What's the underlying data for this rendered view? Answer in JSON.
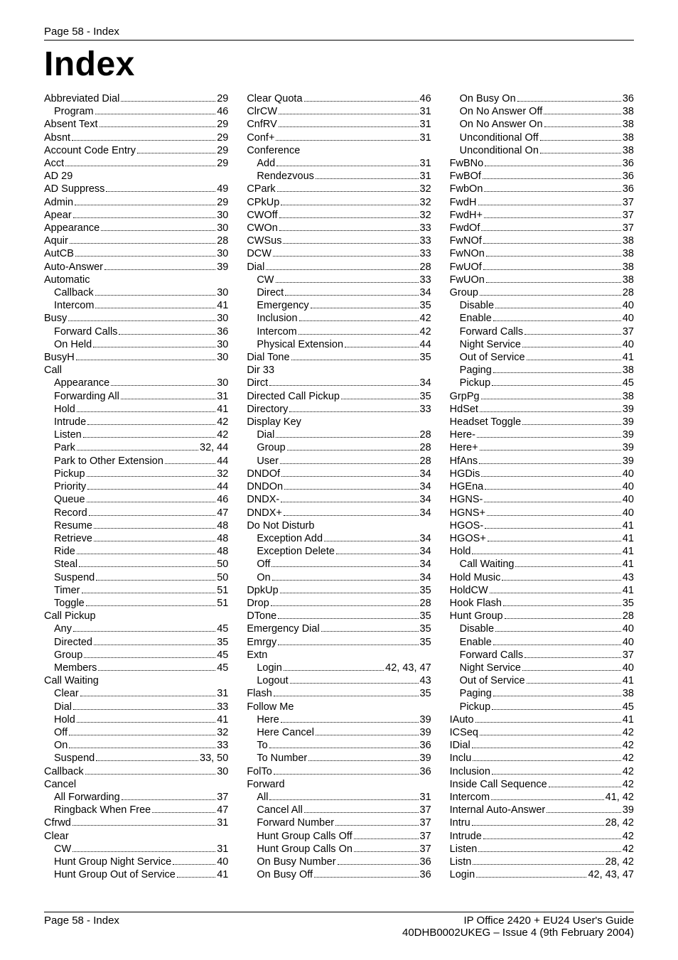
{
  "header": {
    "text": "Page 58 - Index"
  },
  "title": "Index",
  "footer": {
    "left": "Page 58 - Index",
    "right_line1": "IP Office 2420 + EU24 User's Guide",
    "right_line2": "40DHB0002UKEG – Issue 4 (9th February 2004)"
  },
  "entries": [
    {
      "label": "Abbreviated Dial",
      "page": "29",
      "indent": 0
    },
    {
      "label": "Program",
      "page": "46",
      "indent": 1
    },
    {
      "label": "Absent Text",
      "page": "29",
      "indent": 0
    },
    {
      "label": "Absnt",
      "page": "29",
      "indent": 0
    },
    {
      "label": "Account Code Entry",
      "page": "29",
      "indent": 0
    },
    {
      "label": "Acct",
      "page": "29",
      "indent": 0
    },
    {
      "label": "AD 29",
      "page": "",
      "indent": 0,
      "nodots": true
    },
    {
      "label": "AD Suppress",
      "page": "49",
      "indent": 0
    },
    {
      "label": "Admin",
      "page": "29",
      "indent": 0
    },
    {
      "label": "Apear",
      "page": "30",
      "indent": 0
    },
    {
      "label": "Appearance",
      "page": "30",
      "indent": 0
    },
    {
      "label": "Aquir",
      "page": "28",
      "indent": 0
    },
    {
      "label": "AutCB",
      "page": "30",
      "indent": 0
    },
    {
      "label": "Auto-Answer",
      "page": "39",
      "indent": 0
    },
    {
      "label": "Automatic",
      "page": "",
      "indent": 0,
      "nodots": true
    },
    {
      "label": "Callback",
      "page": "30",
      "indent": 1
    },
    {
      "label": "Intercom",
      "page": "41",
      "indent": 1
    },
    {
      "label": "Busy",
      "page": "30",
      "indent": 0
    },
    {
      "label": "Forward Calls",
      "page": "36",
      "indent": 1
    },
    {
      "label": "On Held",
      "page": "30",
      "indent": 1
    },
    {
      "label": "BusyH",
      "page": "30",
      "indent": 0
    },
    {
      "label": "Call",
      "page": "",
      "indent": 0,
      "nodots": true
    },
    {
      "label": "Appearance",
      "page": "30",
      "indent": 1
    },
    {
      "label": "Forwarding All",
      "page": "31",
      "indent": 1
    },
    {
      "label": "Hold",
      "page": "41",
      "indent": 1
    },
    {
      "label": "Intrude",
      "page": "42",
      "indent": 1
    },
    {
      "label": "Listen",
      "page": "42",
      "indent": 1
    },
    {
      "label": "Park",
      "page": "32, 44",
      "indent": 1
    },
    {
      "label": "Park to Other Extension",
      "page": "44",
      "indent": 1
    },
    {
      "label": "Pickup",
      "page": "32",
      "indent": 1
    },
    {
      "label": "Priority",
      "page": "44",
      "indent": 1
    },
    {
      "label": "Queue",
      "page": "46",
      "indent": 1
    },
    {
      "label": "Record",
      "page": "47",
      "indent": 1
    },
    {
      "label": "Resume",
      "page": "48",
      "indent": 1
    },
    {
      "label": "Retrieve",
      "page": "48",
      "indent": 1
    },
    {
      "label": "Ride",
      "page": "48",
      "indent": 1
    },
    {
      "label": "Steal",
      "page": "50",
      "indent": 1
    },
    {
      "label": "Suspend",
      "page": "50",
      "indent": 1
    },
    {
      "label": "Timer",
      "page": "51",
      "indent": 1
    },
    {
      "label": "Toggle",
      "page": "51",
      "indent": 1
    },
    {
      "label": "Call Pickup",
      "page": "",
      "indent": 0,
      "nodots": true
    },
    {
      "label": "Any",
      "page": "45",
      "indent": 1
    },
    {
      "label": "Directed",
      "page": "35",
      "indent": 1
    },
    {
      "label": "Group",
      "page": "45",
      "indent": 1
    },
    {
      "label": "Members",
      "page": "45",
      "indent": 1
    },
    {
      "label": "Call Waiting",
      "page": "",
      "indent": 0,
      "nodots": true
    },
    {
      "label": "Clear",
      "page": "31",
      "indent": 1
    },
    {
      "label": "Dial",
      "page": "33",
      "indent": 1
    },
    {
      "label": "Hold",
      "page": "41",
      "indent": 1
    },
    {
      "label": "Off",
      "page": "32",
      "indent": 1
    },
    {
      "label": "On",
      "page": "33",
      "indent": 1
    },
    {
      "label": "Suspend",
      "page": "33, 50",
      "indent": 1
    },
    {
      "label": "Callback",
      "page": "30",
      "indent": 0
    },
    {
      "label": "Cancel",
      "page": "",
      "indent": 0,
      "nodots": true
    },
    {
      "label": "All Forwarding",
      "page": "37",
      "indent": 1
    },
    {
      "label": "Ringback When Free",
      "page": "47",
      "indent": 1
    },
    {
      "label": "Cfrwd",
      "page": "31",
      "indent": 0
    },
    {
      "label": "Clear",
      "page": "",
      "indent": 0,
      "nodots": true
    },
    {
      "label": "CW",
      "page": "31",
      "indent": 1
    },
    {
      "label": "Hunt Group Night Service",
      "page": "40",
      "indent": 1
    },
    {
      "label": "Hunt Group Out of Service",
      "page": "41",
      "indent": 1
    },
    {
      "label": "Clear Quota",
      "page": "46",
      "indent": 0
    },
    {
      "label": "ClrCW",
      "page": "31",
      "indent": 0
    },
    {
      "label": "CnfRV",
      "page": "31",
      "indent": 0
    },
    {
      "label": "Conf+",
      "page": "31",
      "indent": 0
    },
    {
      "label": "Conference",
      "page": "",
      "indent": 0,
      "nodots": true
    },
    {
      "label": "Add",
      "page": "31",
      "indent": 1
    },
    {
      "label": "Rendezvous",
      "page": "31",
      "indent": 1
    },
    {
      "label": "CPark",
      "page": "32",
      "indent": 0
    },
    {
      "label": "CPkUp",
      "page": "32",
      "indent": 0
    },
    {
      "label": "CWOff",
      "page": "32",
      "indent": 0
    },
    {
      "label": "CWOn",
      "page": "33",
      "indent": 0
    },
    {
      "label": "CWSus",
      "page": "33",
      "indent": 0
    },
    {
      "label": "DCW",
      "page": "33",
      "indent": 0
    },
    {
      "label": "Dial",
      "page": "28",
      "indent": 0
    },
    {
      "label": "CW",
      "page": "33",
      "indent": 1
    },
    {
      "label": "Direct",
      "page": "34",
      "indent": 1
    },
    {
      "label": "Emergency",
      "page": "35",
      "indent": 1
    },
    {
      "label": "Inclusion",
      "page": "42",
      "indent": 1
    },
    {
      "label": "Intercom",
      "page": "42",
      "indent": 1
    },
    {
      "label": "Physical Extension",
      "page": "44",
      "indent": 1
    },
    {
      "label": "Dial Tone",
      "page": "35",
      "indent": 0
    },
    {
      "label": "Dir 33",
      "page": "",
      "indent": 0,
      "nodots": true
    },
    {
      "label": "Dirct",
      "page": "34",
      "indent": 0
    },
    {
      "label": "Directed Call Pickup",
      "page": "35",
      "indent": 0
    },
    {
      "label": "Directory",
      "page": "33",
      "indent": 0
    },
    {
      "label": "Display Key",
      "page": "",
      "indent": 0,
      "nodots": true
    },
    {
      "label": "Dial",
      "page": "28",
      "indent": 1
    },
    {
      "label": "Group",
      "page": "28",
      "indent": 1
    },
    {
      "label": "User",
      "page": "28",
      "indent": 1
    },
    {
      "label": "DNDOf",
      "page": "34",
      "indent": 0
    },
    {
      "label": "DNDOn",
      "page": "34",
      "indent": 0
    },
    {
      "label": "DNDX-",
      "page": "34",
      "indent": 0
    },
    {
      "label": "DNDX+",
      "page": "34",
      "indent": 0
    },
    {
      "label": "Do Not Disturb",
      "page": "",
      "indent": 0,
      "nodots": true
    },
    {
      "label": "Exception Add",
      "page": "34",
      "indent": 1
    },
    {
      "label": "Exception Delete",
      "page": "34",
      "indent": 1
    },
    {
      "label": "Off",
      "page": "34",
      "indent": 1
    },
    {
      "label": "On",
      "page": "34",
      "indent": 1
    },
    {
      "label": "DpkUp",
      "page": "35",
      "indent": 0
    },
    {
      "label": "Drop",
      "page": "28",
      "indent": 0
    },
    {
      "label": "DTone",
      "page": "35",
      "indent": 0
    },
    {
      "label": "Emergency Dial",
      "page": "35",
      "indent": 0
    },
    {
      "label": "Emrgy",
      "page": "35",
      "indent": 0
    },
    {
      "label": "Extn",
      "page": "",
      "indent": 0,
      "nodots": true
    },
    {
      "label": "Login",
      "page": "42, 43, 47",
      "indent": 1
    },
    {
      "label": "Logout",
      "page": "43",
      "indent": 1
    },
    {
      "label": "Flash",
      "page": "35",
      "indent": 0
    },
    {
      "label": "Follow Me",
      "page": "",
      "indent": 0,
      "nodots": true
    },
    {
      "label": "Here",
      "page": "39",
      "indent": 1
    },
    {
      "label": "Here Cancel",
      "page": "39",
      "indent": 1
    },
    {
      "label": "To",
      "page": "36",
      "indent": 1
    },
    {
      "label": "To Number",
      "page": "39",
      "indent": 1
    },
    {
      "label": "FolTo",
      "page": "36",
      "indent": 0
    },
    {
      "label": "Forward",
      "page": "",
      "indent": 0,
      "nodots": true
    },
    {
      "label": "All",
      "page": "31",
      "indent": 1
    },
    {
      "label": "Cancel All",
      "page": "37",
      "indent": 1
    },
    {
      "label": "Forward Number",
      "page": "37",
      "indent": 1
    },
    {
      "label": "Hunt Group Calls Off",
      "page": "37",
      "indent": 1
    },
    {
      "label": "Hunt Group Calls On",
      "page": "37",
      "indent": 1
    },
    {
      "label": "On Busy Number",
      "page": "36",
      "indent": 1
    },
    {
      "label": "On Busy Off",
      "page": "36",
      "indent": 1
    },
    {
      "label": "On Busy On",
      "page": "36",
      "indent": 1
    },
    {
      "label": "On No Answer Off",
      "page": "38",
      "indent": 1
    },
    {
      "label": "On No Answer On",
      "page": "38",
      "indent": 1
    },
    {
      "label": "Unconditional Off",
      "page": "38",
      "indent": 1
    },
    {
      "label": "Unconditional On",
      "page": "38",
      "indent": 1
    },
    {
      "label": "FwBNo",
      "page": "36",
      "indent": 0
    },
    {
      "label": "FwBOf",
      "page": "36",
      "indent": 0
    },
    {
      "label": "FwbOn",
      "page": "36",
      "indent": 0
    },
    {
      "label": "FwdH",
      "page": "37",
      "indent": 0
    },
    {
      "label": "FwdH+",
      "page": "37",
      "indent": 0
    },
    {
      "label": "FwdOf",
      "page": "37",
      "indent": 0
    },
    {
      "label": "FwNOf",
      "page": "38",
      "indent": 0
    },
    {
      "label": "FwNOn",
      "page": "38",
      "indent": 0
    },
    {
      "label": "FwUOf",
      "page": "38",
      "indent": 0
    },
    {
      "label": "FwUOn",
      "page": "38",
      "indent": 0
    },
    {
      "label": "Group",
      "page": "28",
      "indent": 0
    },
    {
      "label": "Disable",
      "page": "40",
      "indent": 1
    },
    {
      "label": "Enable",
      "page": "40",
      "indent": 1
    },
    {
      "label": "Forward Calls",
      "page": "37",
      "indent": 1
    },
    {
      "label": "Night Service",
      "page": "40",
      "indent": 1
    },
    {
      "label": "Out of Service",
      "page": "41",
      "indent": 1
    },
    {
      "label": "Paging",
      "page": "38",
      "indent": 1
    },
    {
      "label": "Pickup",
      "page": "45",
      "indent": 1
    },
    {
      "label": "GrpPg",
      "page": "38",
      "indent": 0
    },
    {
      "label": "HdSet",
      "page": "39",
      "indent": 0
    },
    {
      "label": "Headset Toggle",
      "page": "39",
      "indent": 0
    },
    {
      "label": "Here-",
      "page": "39",
      "indent": 0
    },
    {
      "label": "Here+",
      "page": "39",
      "indent": 0
    },
    {
      "label": "HfAns",
      "page": "39",
      "indent": 0
    },
    {
      "label": "HGDis",
      "page": "40",
      "indent": 0
    },
    {
      "label": "HGEna",
      "page": "40",
      "indent": 0
    },
    {
      "label": "HGNS-",
      "page": "40",
      "indent": 0
    },
    {
      "label": "HGNS+",
      "page": "40",
      "indent": 0
    },
    {
      "label": "HGOS-",
      "page": "41",
      "indent": 0
    },
    {
      "label": "HGOS+",
      "page": "41",
      "indent": 0
    },
    {
      "label": "Hold",
      "page": "41",
      "indent": 0
    },
    {
      "label": "Call Waiting",
      "page": "41",
      "indent": 1
    },
    {
      "label": "Hold Music",
      "page": "43",
      "indent": 0
    },
    {
      "label": "HoldCW",
      "page": "41",
      "indent": 0
    },
    {
      "label": "Hook Flash",
      "page": "35",
      "indent": 0
    },
    {
      "label": "Hunt Group",
      "page": "28",
      "indent": 0
    },
    {
      "label": "Disable",
      "page": "40",
      "indent": 1
    },
    {
      "label": "Enable",
      "page": "40",
      "indent": 1
    },
    {
      "label": "Forward Calls",
      "page": "37",
      "indent": 1
    },
    {
      "label": "Night Service",
      "page": "40",
      "indent": 1
    },
    {
      "label": "Out of Service",
      "page": "41",
      "indent": 1
    },
    {
      "label": "Paging",
      "page": "38",
      "indent": 1
    },
    {
      "label": "Pickup",
      "page": "45",
      "indent": 1
    },
    {
      "label": "IAuto",
      "page": "41",
      "indent": 0
    },
    {
      "label": "ICSeq",
      "page": "42",
      "indent": 0
    },
    {
      "label": "IDial",
      "page": "42",
      "indent": 0
    },
    {
      "label": "Inclu",
      "page": "42",
      "indent": 0
    },
    {
      "label": "Inclusion",
      "page": "42",
      "indent": 0
    },
    {
      "label": "Inside Call Sequence",
      "page": "42",
      "indent": 0
    },
    {
      "label": "Intercom",
      "page": "41, 42",
      "indent": 0
    },
    {
      "label": "Internal Auto-Answer",
      "page": "39",
      "indent": 0
    },
    {
      "label": "Intru",
      "page": "28, 42",
      "indent": 0
    },
    {
      "label": "Intrude",
      "page": "42",
      "indent": 0
    },
    {
      "label": "Listen",
      "page": "42",
      "indent": 0
    },
    {
      "label": "Listn",
      "page": "28, 42",
      "indent": 0
    },
    {
      "label": "Login",
      "page": "42, 43, 47",
      "indent": 0
    }
  ]
}
